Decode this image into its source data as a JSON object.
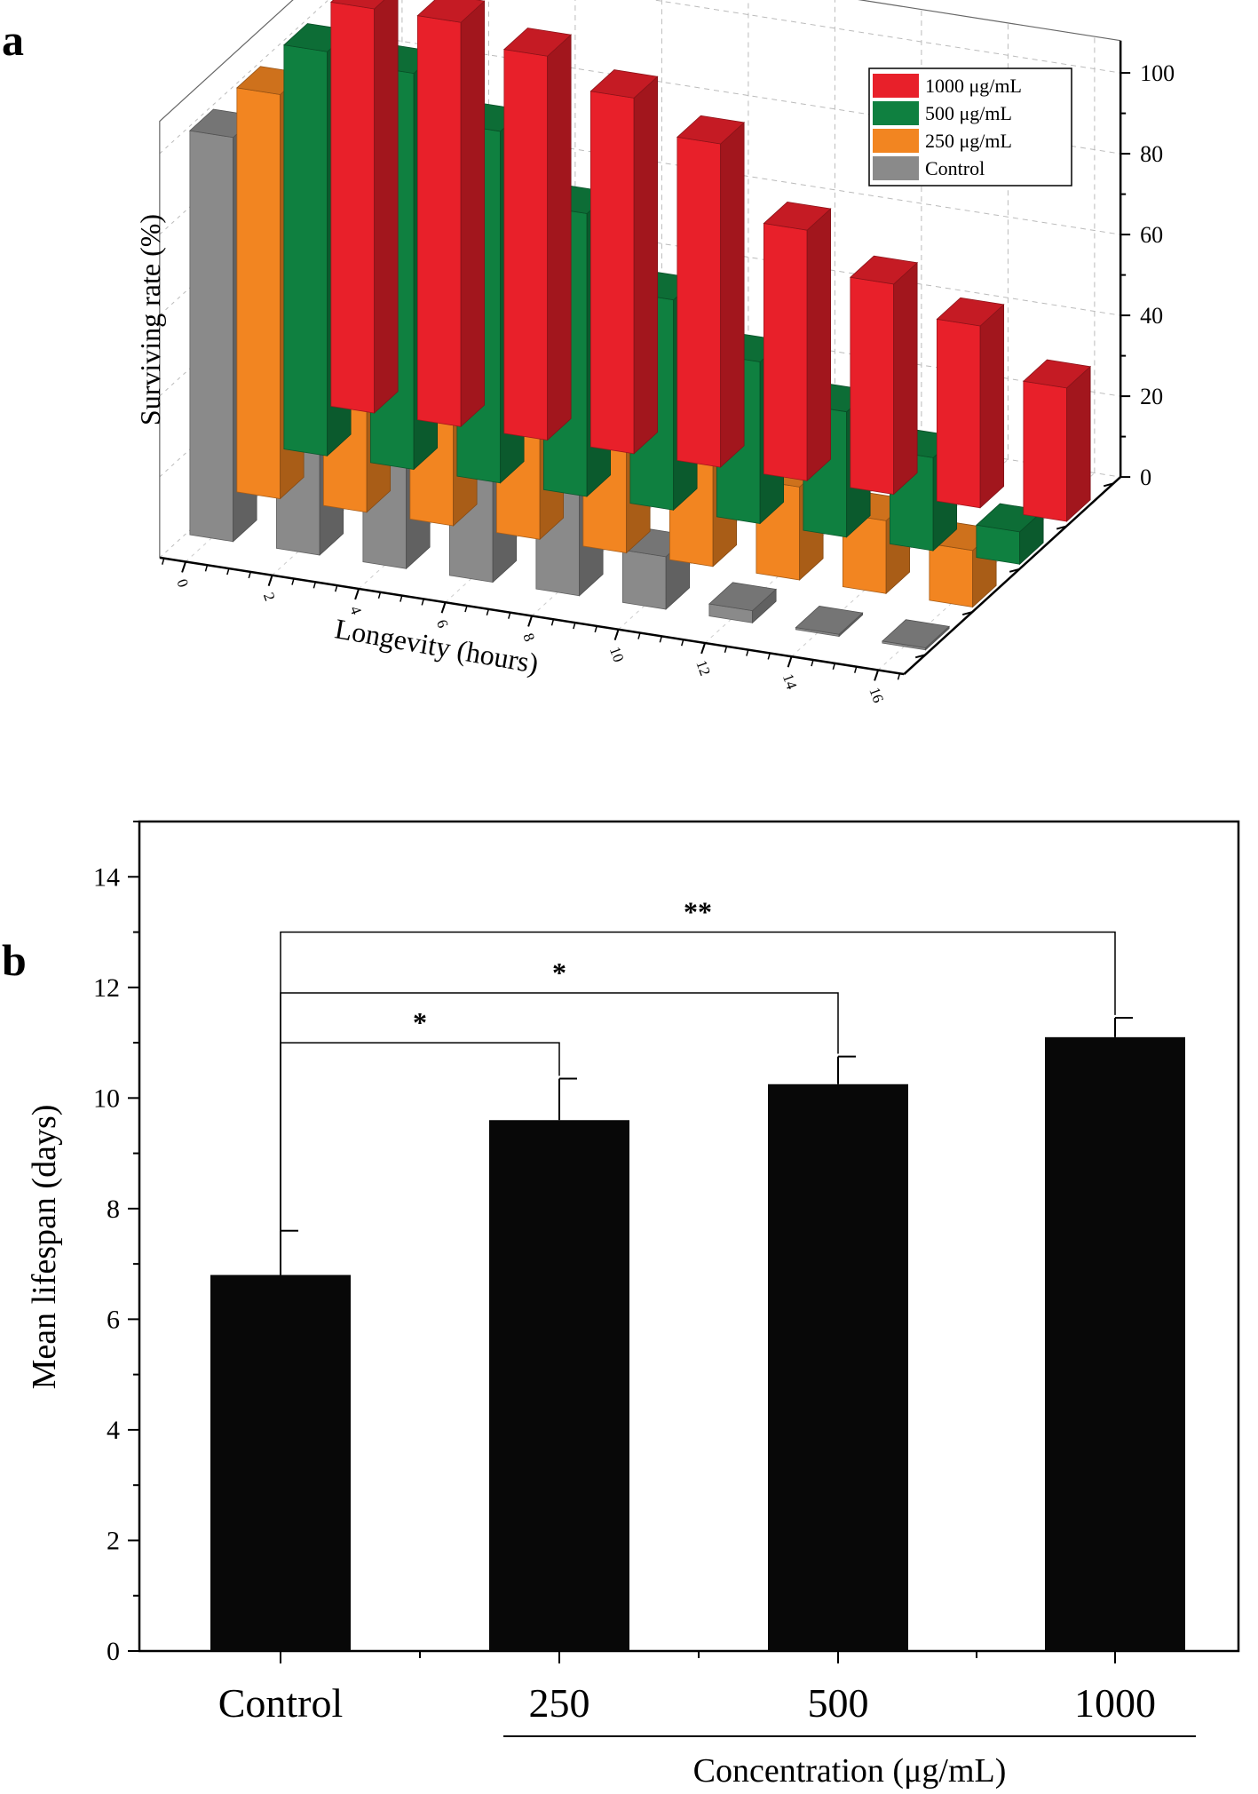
{
  "chart_data": [
    {
      "panel_label": "a",
      "type": "bar3d",
      "xlabel": "Longevity (hours)",
      "ylabel": "Surviving rate (%)",
      "x": [
        0,
        2,
        4,
        6,
        8,
        10,
        12,
        14,
        16
      ],
      "x_tick_labels": [
        "0",
        "2",
        "4",
        "6",
        "8",
        "10",
        "12",
        "14",
        "16"
      ],
      "y_ticks": [
        0,
        20,
        40,
        60,
        80,
        100
      ],
      "ylim": [
        0,
        100
      ],
      "grid": true,
      "legend_position": "top-right",
      "series": [
        {
          "name": "1000 μg/mL",
          "color": "#e8202a",
          "values": [
            100,
            100,
            95,
            88,
            80,
            62,
            52,
            45,
            33
          ]
        },
        {
          "name": "500 μg/mL",
          "color": "#0f8040",
          "values": [
            100,
            98,
            87,
            70,
            52,
            40,
            31,
            23,
            8
          ]
        },
        {
          "name": "250 μg/mL",
          "color": "#f28521",
          "values": [
            100,
            95,
            80,
            67,
            58,
            32,
            23,
            18,
            14
          ]
        },
        {
          "name": "Control",
          "color": "#8a8a8a",
          "values": [
            100,
            92,
            75,
            62,
            28,
            13,
            3,
            0.5,
            0.5
          ]
        }
      ]
    },
    {
      "panel_label": "b",
      "type": "bar",
      "ylabel": "Mean lifespan (days)",
      "xlabel": "Concentration (μg/mL)",
      "categories": [
        "Control",
        "250",
        "500",
        "1000"
      ],
      "values": [
        6.8,
        9.6,
        10.25,
        11.1
      ],
      "errors": [
        0.8,
        0.75,
        0.5,
        0.35
      ],
      "ylim": [
        0,
        15
      ],
      "y_ticks": [
        0,
        2,
        4,
        6,
        8,
        10,
        12,
        14
      ],
      "bar_color": "#080808",
      "significance": [
        {
          "from": "Control",
          "to": "250",
          "label": "*",
          "level": 11.0
        },
        {
          "from": "Control",
          "to": "500",
          "label": "*",
          "level": 11.9
        },
        {
          "from": "Control",
          "to": "1000",
          "label": "**",
          "level": 13.0
        }
      ]
    }
  ]
}
